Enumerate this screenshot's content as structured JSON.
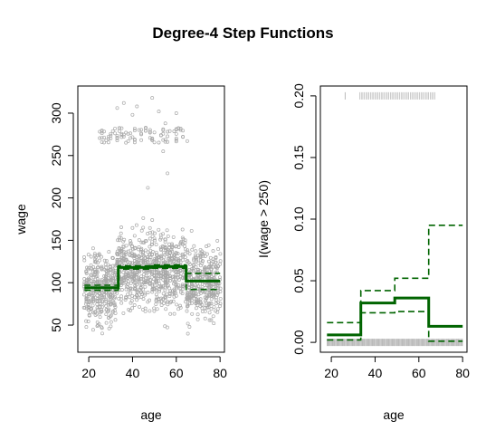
{
  "figure": {
    "title": "Degree-4 Step Functions"
  },
  "colors": {
    "fit": "#006400",
    "points": "#a9a9a9",
    "rug": "#a9a9a9",
    "axis": "#000000"
  },
  "chart_data": [
    {
      "type": "scatter",
      "title": "",
      "xlabel": "age",
      "ylabel": "wage",
      "xlim": [
        15,
        82
      ],
      "ylim": [
        18,
        332
      ],
      "xticks": [
        20,
        40,
        60,
        80
      ],
      "yticks": [
        50,
        100,
        150,
        200,
        250,
        300
      ],
      "scatter_summary": {
        "x_range": [
          18,
          80
        ],
        "main_cloud_wage_range": [
          20,
          205
        ],
        "main_cloud_center": 105,
        "high_earner_band": [
          250,
          320
        ]
      },
      "series": [
        {
          "role": "fit",
          "style": "solid",
          "x": [
            18,
            33.5,
            33.5,
            49,
            49,
            64.5,
            64.5,
            80
          ],
          "y": [
            94,
            94,
            118,
            118,
            119,
            119,
            102,
            102
          ]
        },
        {
          "role": "upper-band",
          "style": "dashed",
          "x": [
            18,
            33.5,
            33.5,
            49,
            49,
            64.5,
            64.5,
            80
          ],
          "y": [
            97,
            97,
            120,
            120,
            121,
            121,
            111,
            111
          ]
        },
        {
          "role": "lower-band",
          "style": "dashed",
          "x": [
            18,
            33.5,
            33.5,
            49,
            49,
            64.5,
            64.5,
            80
          ],
          "y": [
            91,
            91,
            116,
            116,
            117,
            117,
            92,
            92
          ]
        }
      ]
    },
    {
      "type": "line",
      "title": "",
      "xlabel": "age",
      "ylabel": "I(wage > 250)",
      "xlim": [
        15,
        82
      ],
      "ylim": [
        -0.008,
        0.208
      ],
      "xticks": [
        20,
        40,
        60,
        80
      ],
      "yticks": [
        "0.00",
        "0.05",
        "0.10",
        "0.15",
        "0.20"
      ],
      "series": [
        {
          "role": "fit",
          "style": "solid",
          "x": [
            18,
            33.5,
            33.5,
            49,
            49,
            64.5,
            64.5,
            80
          ],
          "y": [
            0.006,
            0.006,
            0.032,
            0.032,
            0.036,
            0.036,
            0.013,
            0.013
          ]
        },
        {
          "role": "upper-band",
          "style": "dashed",
          "x": [
            18,
            33.5,
            33.5,
            49,
            49,
            64.5,
            64.5,
            80
          ],
          "y": [
            0.016,
            0.016,
            0.042,
            0.042,
            0.052,
            0.052,
            0.095,
            0.095
          ]
        },
        {
          "role": "lower-band",
          "style": "dashed",
          "x": [
            18,
            33.5,
            33.5,
            49,
            49,
            64.5,
            64.5,
            80
          ],
          "y": [
            0.002,
            0.002,
            0.024,
            0.024,
            0.025,
            0.025,
            0.001,
            0.001
          ]
        }
      ],
      "rug": {
        "top": {
          "y": 0.2,
          "x_range": [
            26,
            68
          ]
        },
        "bottom": {
          "y": 0.0,
          "x_range": [
            18,
            80
          ]
        }
      }
    }
  ]
}
